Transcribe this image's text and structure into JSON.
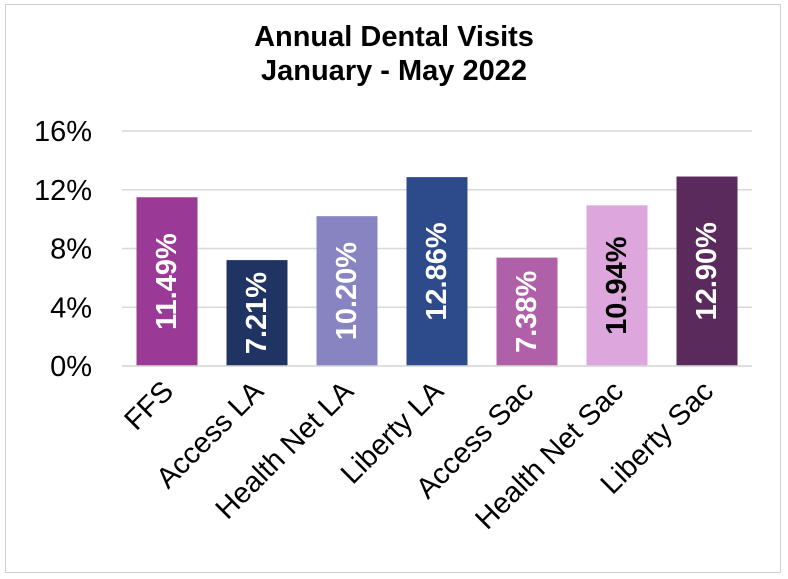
{
  "chart_data": {
    "type": "bar",
    "title_line1": "Annual Dental Visits",
    "title_line2": "January - May 2022",
    "xlabel": "",
    "ylabel": "",
    "ylim": [
      0,
      16
    ],
    "yticks": [
      0,
      4,
      8,
      12,
      16
    ],
    "ytick_labels": [
      "0%",
      "4%",
      "8%",
      "12%",
      "16%"
    ],
    "grid": true,
    "categories": [
      "FFS",
      "Access LA",
      "Health Net LA",
      "Liberty LA",
      "Access Sac",
      "Health Net Sac",
      "Liberty Sac"
    ],
    "values": [
      11.49,
      7.21,
      10.2,
      12.86,
      7.38,
      10.94,
      12.9
    ],
    "data_labels": [
      "11.49%",
      "7.21%",
      "10.20%",
      "12.86%",
      "7.38%",
      "10.94%",
      "12.90%"
    ],
    "colors": [
      "#9B3A96",
      "#1F3462",
      "#8884C2",
      "#2D4A8A",
      "#B060A8",
      "#DDA6DC",
      "#5B2A5C"
    ],
    "label_colors": [
      "#ffffff",
      "#ffffff",
      "#ffffff",
      "#ffffff",
      "#ffffff",
      "#000000",
      "#ffffff"
    ]
  }
}
